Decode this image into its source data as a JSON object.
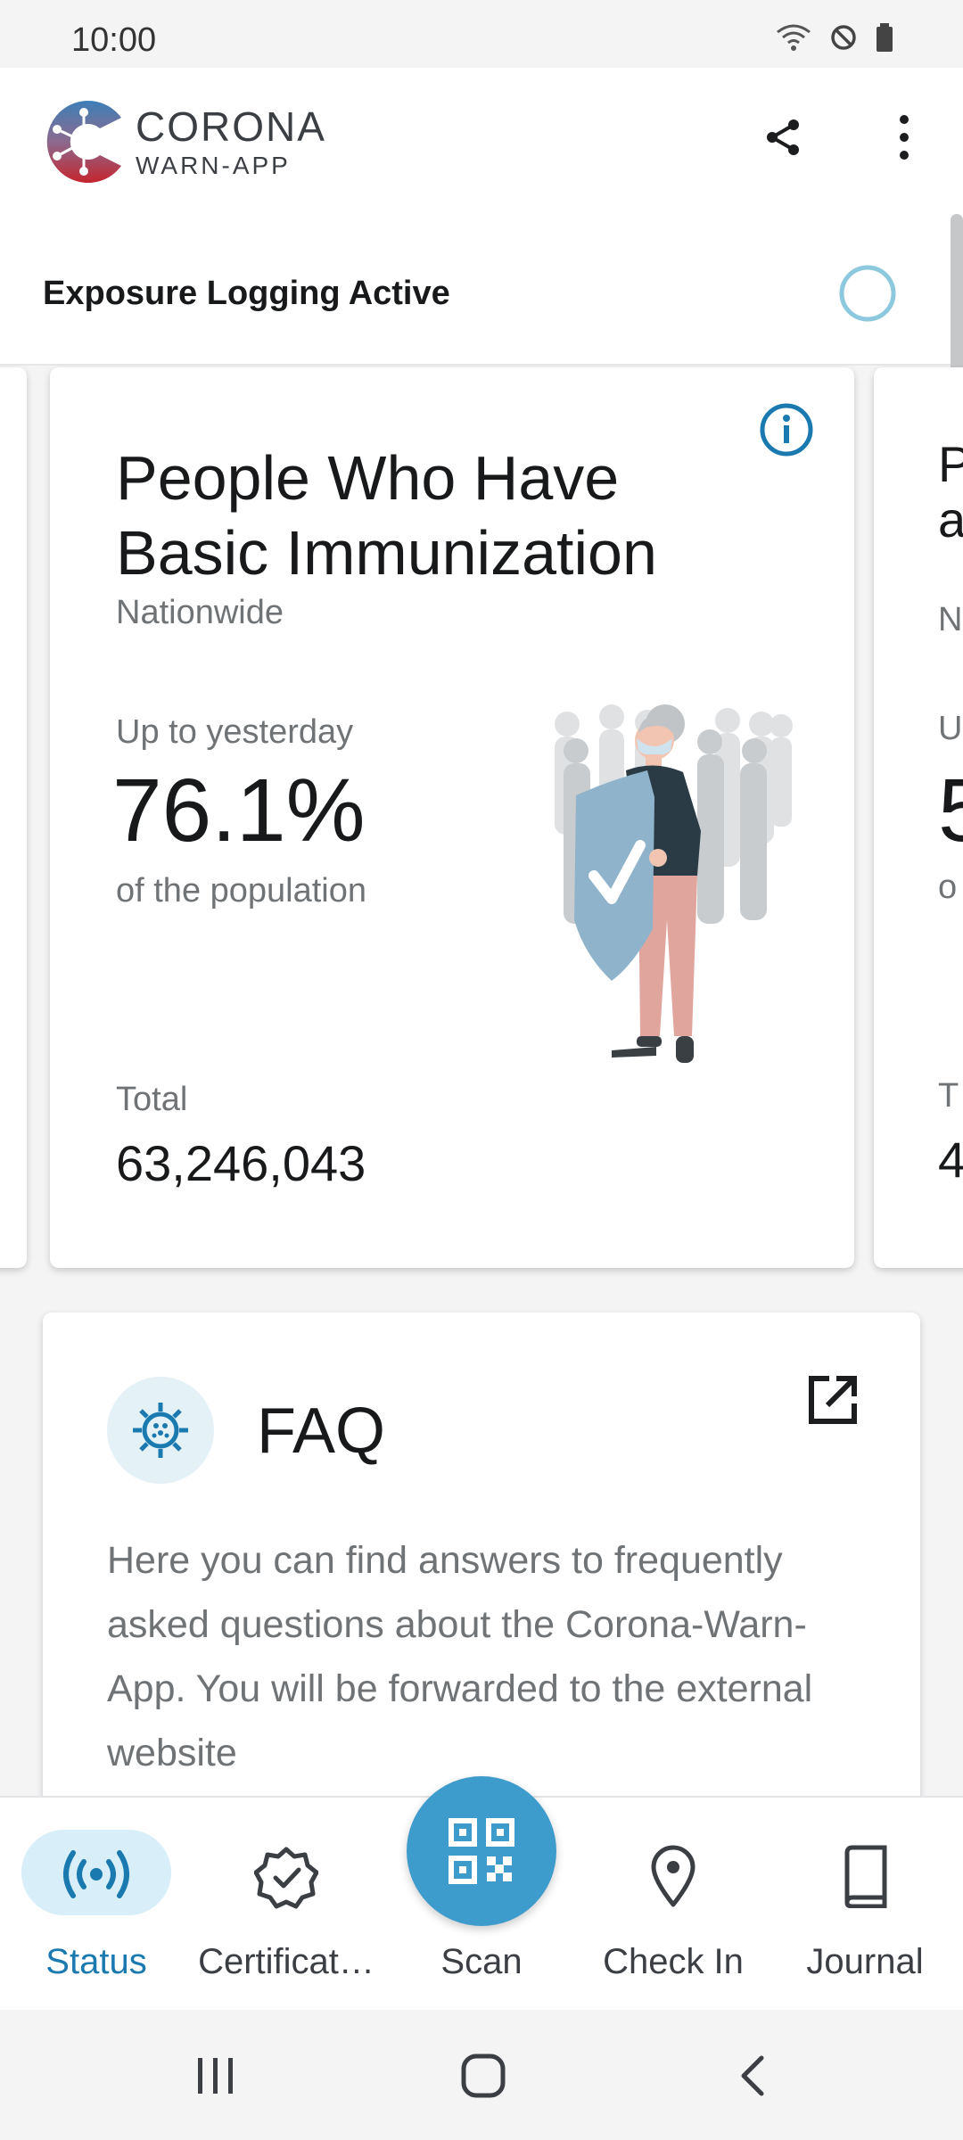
{
  "status_bar": {
    "time": "10:00"
  },
  "brand": {
    "line1": "CORONA",
    "line2": "WARN-APP"
  },
  "exposure": {
    "label": "Exposure Logging Active"
  },
  "stat_card": {
    "title": "People Who Have Basic Immunization",
    "region": "Nationwide",
    "period_label": "Up to yesterday",
    "percentage": "76.1%",
    "percentage_caption": "of the population",
    "total_label": "Total",
    "total_value": "63,246,043"
  },
  "peek_card": {
    "letters": [
      "P",
      "a",
      "N",
      "U",
      "5",
      "o",
      "T",
      "4"
    ]
  },
  "faq": {
    "title": "FAQ",
    "body": "Here you can find answers to frequently asked questions about the Corona-Warn-App. You will be forwarded to the external website"
  },
  "bottom_nav": {
    "items": [
      {
        "label": "Status",
        "icon": "broadcast-icon"
      },
      {
        "label": "Certificat…",
        "icon": "certificate-badge-icon"
      },
      {
        "label": "Scan",
        "icon": "qr-code-icon"
      },
      {
        "label": "Check In",
        "icon": "location-pin-icon"
      },
      {
        "label": "Journal",
        "icon": "book-icon"
      }
    ]
  },
  "colors": {
    "accent": "#1a7ab0",
    "fab": "#3e9ccd",
    "pill": "#d8eef8"
  }
}
